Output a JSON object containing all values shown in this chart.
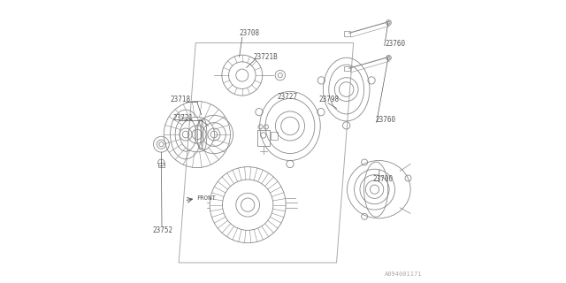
{
  "bg_color": "#ffffff",
  "line_color": "#888888",
  "text_color": "#555555",
  "border_color": "#aaaaaa",
  "fig_width": 6.4,
  "fig_height": 3.2,
  "dpi": 100,
  "watermark": "A094001171"
}
